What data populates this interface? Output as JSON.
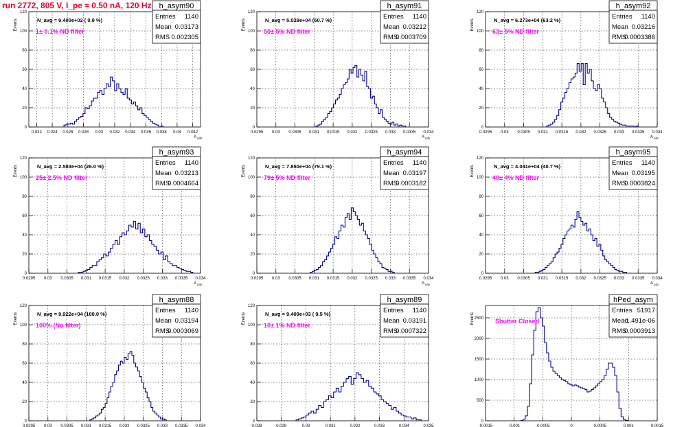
{
  "canvas_title": "run 2772,   805 V, I_pe ≈ 0.50 nA, 120 Hz",
  "colors": {
    "histogram": "#00008b",
    "annotation": "#ff00ff",
    "canvas_title": "#e8002a"
  },
  "chart_data": [
    {
      "type": "histogram",
      "histogram_name": "h_asym90",
      "xlabel": "A_uID",
      "ylabel": "Events",
      "xlim": [
        0.021,
        0.043
      ],
      "ylim": [
        0,
        120
      ],
      "x_tick_labels": [
        "0.022",
        "0.024",
        "0.026",
        "0.028",
        "0.03",
        "0.032",
        "0.034",
        "0.036",
        "0.038",
        "0.04",
        "0.042"
      ],
      "y_tick_labels": [
        "0",
        "20",
        "40",
        "60",
        "80",
        "100",
        "120"
      ],
      "navg_text": "N_avg = 9.400e+02 ( 0.9 %)",
      "filter_text": "1± 0.1% ND filter",
      "stats": {
        "Entries": "1140",
        "Mean": "0.03173",
        "RMS": "0.002305"
      },
      "bin_edges": [
        0.0255,
        0.0323,
        0.0382
      ],
      "bins": [
        2,
        3,
        3,
        4,
        3,
        6,
        8,
        10,
        11,
        14,
        20,
        19,
        22,
        27,
        30,
        30,
        36,
        38,
        34,
        40,
        45,
        42,
        52,
        48,
        38,
        45,
        40,
        36,
        34,
        40,
        30,
        28,
        24,
        26,
        22,
        18,
        20,
        14,
        12,
        10,
        8,
        6,
        4,
        3,
        2,
        0,
        1
      ]
    },
    {
      "type": "histogram",
      "histogram_name": "h_asym91",
      "xlabel": "A_uID",
      "ylabel": "Events",
      "xlim": [
        0.0295,
        0.034
      ],
      "ylim": [
        0,
        120
      ],
      "x_tick_labels": [
        "0.0295",
        "0.03",
        "0.0305",
        "0.031",
        "0.0315",
        "0.032",
        "0.0325",
        "0.033",
        "0.0335",
        "0.034"
      ],
      "y_tick_labels": [
        "0",
        "20",
        "40",
        "60",
        "80",
        "100",
        "120"
      ],
      "navg_text": "N_avg = 5.028e+04 (50.7 %)",
      "filter_text": "50± 5% ND filter",
      "stats": {
        "Entries": "1140",
        "Mean": "0.03212",
        "RMS": "0.0003709"
      },
      "bin_edges": [
        0.03105,
        0.0321,
        0.0334
      ],
      "bins": [
        1,
        2,
        3,
        6,
        8,
        10,
        14,
        16,
        20,
        24,
        28,
        30,
        34,
        40,
        44,
        46,
        50,
        60,
        56,
        62,
        64,
        52,
        60,
        54,
        48,
        58,
        42,
        40,
        30,
        32,
        24,
        20,
        14,
        18,
        10,
        8,
        6,
        4,
        3,
        5,
        2,
        3,
        1,
        2,
        1,
        1
      ]
    },
    {
      "type": "histogram",
      "histogram_name": "h_asym92",
      "xlabel": "A_uID",
      "ylabel": "Events",
      "xlim": [
        0.0295,
        0.034
      ],
      "ylim": [
        0,
        120
      ],
      "x_tick_labels": [
        "0.0295",
        "0.03",
        "0.0305",
        "0.031",
        "0.0315",
        "0.032",
        "0.0325",
        "0.033",
        "0.0335",
        "0.034"
      ],
      "y_tick_labels": [
        "0",
        "20",
        "40",
        "60",
        "80",
        "100",
        "120"
      ],
      "navg_text": "N_avg = 6.273e+04 (63.2 %)",
      "filter_text": "63± 5% ND filter",
      "stats": {
        "Entries": "1140",
        "Mean": "0.03216",
        "RMS": "0.0003386"
      },
      "bin_edges": [
        0.0311,
        0.0322,
        0.0335
      ],
      "bins": [
        1,
        2,
        3,
        5,
        8,
        12,
        18,
        26,
        30,
        36,
        40,
        46,
        50,
        52,
        56,
        66,
        58,
        66,
        44,
        66,
        56,
        60,
        48,
        40,
        38,
        44,
        40,
        30,
        26,
        20,
        14,
        10,
        8,
        6,
        5,
        4,
        3,
        2,
        2,
        1,
        1,
        1,
        1,
        0,
        1
      ]
    },
    {
      "type": "histogram",
      "histogram_name": "h_asym93",
      "xlabel": "A_uID",
      "ylabel": "Events",
      "xlim": [
        0.0295,
        0.034
      ],
      "ylim": [
        0,
        120
      ],
      "x_tick_labels": [
        "0.0295",
        "0.03",
        "0.0305",
        "0.031",
        "0.0315",
        "0.032",
        "0.0325",
        "0.033",
        "0.0335",
        "0.034"
      ],
      "y_tick_labels": [
        "0",
        "20",
        "40",
        "60",
        "80",
        "100",
        "120"
      ],
      "navg_text": "N_avg = 2.583e+04 (26.0 %)",
      "filter_text": "25± 2.5% ND filter",
      "stats": {
        "Entries": "1140",
        "Mean": "0.03213",
        "RMS": "0.0004664"
      },
      "bin_edges": [
        0.0308,
        0.0322,
        0.0338
      ],
      "bins": [
        1,
        1,
        2,
        3,
        4,
        6,
        8,
        8,
        12,
        14,
        16,
        20,
        18,
        22,
        26,
        30,
        34,
        30,
        38,
        42,
        40,
        44,
        50,
        48,
        54,
        46,
        52,
        42,
        46,
        38,
        40,
        34,
        30,
        28,
        24,
        20,
        22,
        14,
        18,
        12,
        10,
        8,
        8,
        6,
        5,
        4,
        3,
        2,
        2,
        1
      ]
    },
    {
      "type": "histogram",
      "histogram_name": "h_asym94",
      "xlabel": "A_uID",
      "ylabel": "Events",
      "xlim": [
        0.0295,
        0.034
      ],
      "ylim": [
        0,
        120
      ],
      "x_tick_labels": [
        "0.0295",
        "0.03",
        "0.0305",
        "0.031",
        "0.0315",
        "0.032",
        "0.0325",
        "0.033",
        "0.0335",
        "0.034"
      ],
      "y_tick_labels": [
        "0",
        "20",
        "40",
        "60",
        "80",
        "100",
        "120"
      ],
      "navg_text": "N_avg = 7.850e+04 (79.1 %)",
      "filter_text": "79± 5% ND filter",
      "stats": {
        "Entries": "1140",
        "Mean": "0.03197",
        "RMS": "0.0003182"
      },
      "bin_edges": [
        0.0309,
        0.032,
        0.0331
      ],
      "bins": [
        1,
        2,
        3,
        4,
        6,
        8,
        12,
        14,
        18,
        22,
        26,
        30,
        38,
        36,
        44,
        50,
        48,
        58,
        62,
        56,
        68,
        64,
        60,
        56,
        50,
        52,
        44,
        40,
        36,
        30,
        24,
        20,
        16,
        12,
        10,
        6,
        5,
        4,
        2,
        2,
        1
      ]
    },
    {
      "type": "histogram",
      "histogram_name": "h_asym95",
      "xlabel": "A_uID",
      "ylabel": "Events",
      "xlim": [
        0.0295,
        0.034
      ],
      "ylim": [
        0,
        120
      ],
      "x_tick_labels": [
        "0.0295",
        "0.03",
        "0.0305",
        "0.031",
        "0.0315",
        "0.032",
        "0.0325",
        "0.033",
        "0.0335",
        "0.034"
      ],
      "y_tick_labels": [
        "0",
        "20",
        "40",
        "60",
        "80",
        "100",
        "120"
      ],
      "navg_text": "N_avg = 4.041e+04 (40.7 %)",
      "filter_text": "40± 4% ND filter",
      "stats": {
        "Entries": "1140",
        "Mean": "0.03195",
        "RMS": "0.0003824"
      },
      "bin_edges": [
        0.0308,
        0.032,
        0.0332
      ],
      "bins": [
        1,
        1,
        2,
        3,
        4,
        6,
        8,
        10,
        12,
        16,
        20,
        22,
        26,
        30,
        36,
        40,
        44,
        46,
        50,
        48,
        56,
        64,
        58,
        54,
        50,
        52,
        44,
        46,
        40,
        34,
        36,
        28,
        30,
        24,
        18,
        14,
        12,
        10,
        8,
        6,
        4,
        3,
        2,
        2,
        1,
        1
      ]
    },
    {
      "type": "histogram",
      "histogram_name": "h_asym88",
      "xlabel": "A_uID",
      "ylabel": "Events",
      "xlim": [
        0.0295,
        0.034
      ],
      "ylim": [
        0,
        120
      ],
      "x_tick_labels": [
        "0.0295",
        "0.03",
        "0.0305",
        "0.031",
        "0.0315",
        "0.032",
        "0.0325",
        "0.033",
        "0.0335",
        "0.034"
      ],
      "y_tick_labels": [
        "0",
        "20",
        "40",
        "60",
        "80",
        "100",
        "120"
      ],
      "navg_text": "N_avg = 9.922e+04 (100.0 %)",
      "filter_text": "100% (No filter)",
      "stats": {
        "Entries": "1140",
        "Mean": "0.03194",
        "RMS": "0.0003069"
      },
      "bin_edges": [
        0.0311,
        0.032,
        0.0331
      ],
      "bins": [
        1,
        2,
        3,
        5,
        6,
        8,
        12,
        14,
        18,
        24,
        30,
        36,
        40,
        48,
        52,
        58,
        62,
        60,
        66,
        64,
        70,
        72,
        68,
        60,
        56,
        52,
        46,
        40,
        34,
        30,
        24,
        20,
        14,
        10,
        8,
        6,
        4,
        2,
        2,
        1
      ]
    },
    {
      "type": "histogram",
      "histogram_name": "h_asym89",
      "xlabel": "A_uID",
      "ylabel": "Events",
      "xlim": [
        0.028,
        0.035
      ],
      "ylim": [
        0,
        120
      ],
      "x_tick_labels": [
        "0.028",
        "0.029",
        "0.03",
        "0.031",
        "0.032",
        "0.033",
        "0.034",
        "0.035"
      ],
      "y_tick_labels": [
        "0",
        "20",
        "40",
        "60",
        "80",
        "100",
        "120"
      ],
      "navg_text": "N_avg = 9.409e+03 ( 9.5 %)",
      "filter_text": "10± 1% ND filter",
      "stats": {
        "Entries": "1140",
        "Mean": "0.03191",
        "RMS": "0.0007322"
      },
      "bin_edges": [
        0.0296,
        0.0321,
        0.0347
      ],
      "bins": [
        1,
        2,
        3,
        4,
        6,
        8,
        10,
        8,
        12,
        16,
        14,
        20,
        22,
        26,
        24,
        30,
        34,
        30,
        36,
        40,
        44,
        46,
        38,
        44,
        50,
        48,
        44,
        40,
        42,
        36,
        34,
        30,
        28,
        26,
        22,
        20,
        18,
        16,
        12,
        14,
        10,
        8,
        6,
        5,
        4,
        4,
        2,
        3,
        1,
        1
      ]
    },
    {
      "type": "histogram",
      "histogram_name": "hPed_asym",
      "xlabel": "A_uID",
      "ylabel": "Events",
      "xlim": [
        -0.0015,
        0.0015
      ],
      "ylim": [
        0,
        2800
      ],
      "x_tick_labels": [
        "-0.0015",
        "-0.001",
        "-0.0005",
        "0",
        "0.0005",
        "0.001",
        "0.0015"
      ],
      "y_tick_labels": [
        "0",
        "500",
        "1000",
        "1500",
        "2000",
        "2500"
      ],
      "navg_text": "",
      "filter_text": "Shutter Closed",
      "stats": {
        "Entries": "51917",
        "Mean": "-1.491e-06",
        "RMS": "0.0003913"
      },
      "bin_edges": [
        -0.00088,
        0.0,
        0.00098
      ],
      "bins": [
        10,
        40,
        120,
        350,
        900,
        1600,
        2200,
        2650,
        2750,
        2500,
        2300,
        1900,
        1650,
        1450,
        1300,
        1200,
        1150,
        1100,
        1050,
        1000,
        980,
        950,
        900,
        880,
        850,
        870,
        850,
        820,
        800,
        780,
        760,
        700,
        720,
        760,
        800,
        850,
        900,
        950,
        1000,
        1100,
        1250,
        1400,
        1400,
        1300,
        1100,
        700,
        300,
        100,
        30,
        10
      ]
    }
  ]
}
